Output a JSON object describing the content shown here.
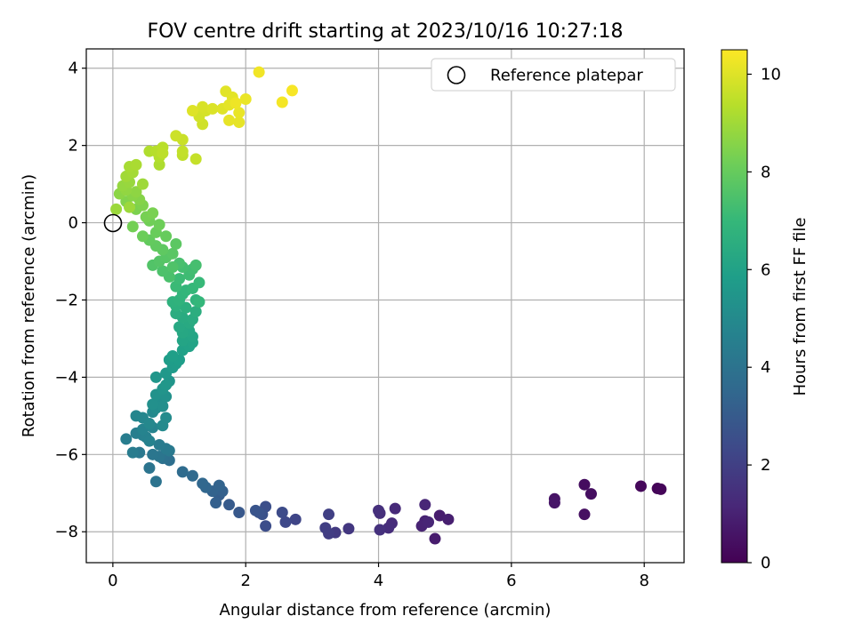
{
  "chart_data": {
    "type": "scatter",
    "title": "FOV centre drift starting at 2023/10/16 10:27:18",
    "xlabel": "Angular distance from reference (arcmin)",
    "ylabel": "Rotation from reference (arcmin)",
    "xlim": [
      -0.4,
      8.6
    ],
    "ylim": [
      -8.8,
      4.5
    ],
    "xticks": [
      "0",
      "2",
      "4",
      "6",
      "8"
    ],
    "yticks": [
      "−8",
      "−6",
      "−4",
      "−2",
      "0",
      "2",
      "4"
    ],
    "grid": true,
    "legend": {
      "position": "top-right",
      "entries": [
        "Reference platepar"
      ]
    },
    "reference_point": {
      "x": 0,
      "y": 0
    },
    "colorbar": {
      "label": "Hours from first FF file",
      "range": [
        0,
        10.5
      ],
      "ticks": [
        "0",
        "2",
        "4",
        "6",
        "8",
        "10"
      ],
      "colormap": "viridis"
    },
    "colors": {
      "viridis": [
        "#440154",
        "#482878",
        "#3e4989",
        "#31688e",
        "#26828e",
        "#1f9e89",
        "#35b779",
        "#6ece58",
        "#b5de2b",
        "#fde725"
      ]
    },
    "series": [
      {
        "points": [
          [
            8.2,
            -6.88,
            0.1
          ],
          [
            8.25,
            -6.9,
            0.15
          ],
          [
            7.95,
            -6.82,
            0.2
          ],
          [
            7.1,
            -6.78,
            0.35
          ],
          [
            7.2,
            -7.02,
            0.4
          ],
          [
            7.1,
            -7.55,
            0.45
          ],
          [
            6.65,
            -7.15,
            0.55
          ],
          [
            6.65,
            -7.25,
            0.6
          ],
          [
            4.85,
            -8.18,
            0.8
          ],
          [
            4.92,
            -7.58,
            0.85
          ],
          [
            5.05,
            -7.68,
            0.9
          ],
          [
            4.7,
            -7.72,
            1.0
          ],
          [
            4.65,
            -7.85,
            1.05
          ],
          [
            4.75,
            -7.75,
            1.1
          ],
          [
            4.7,
            -7.3,
            1.15
          ],
          [
            4.25,
            -7.4,
            1.25
          ],
          [
            4.2,
            -7.78,
            1.3
          ],
          [
            4.15,
            -7.9,
            1.35
          ],
          [
            4.02,
            -7.52,
            1.4
          ],
          [
            4.0,
            -7.45,
            1.45
          ],
          [
            4.02,
            -7.95,
            1.5
          ],
          [
            3.55,
            -7.92,
            1.7
          ],
          [
            3.35,
            -8.02,
            1.8
          ],
          [
            3.25,
            -8.05,
            1.9
          ],
          [
            3.2,
            -7.9,
            1.95
          ],
          [
            3.25,
            -7.55,
            2.0
          ],
          [
            2.75,
            -7.68,
            2.2
          ],
          [
            2.6,
            -7.75,
            2.3
          ],
          [
            2.55,
            -7.5,
            2.4
          ],
          [
            2.3,
            -7.85,
            2.5
          ],
          [
            2.3,
            -7.35,
            2.55
          ],
          [
            2.25,
            -7.55,
            2.65
          ],
          [
            2.2,
            -7.5,
            2.7
          ],
          [
            2.15,
            -7.45,
            2.75
          ],
          [
            1.9,
            -7.5,
            2.9
          ],
          [
            1.75,
            -7.3,
            3.0
          ],
          [
            1.6,
            -7.05,
            3.1
          ],
          [
            1.55,
            -7.25,
            3.2
          ],
          [
            1.65,
            -6.95,
            3.25
          ],
          [
            1.5,
            -6.95,
            3.3
          ],
          [
            1.6,
            -6.8,
            3.35
          ],
          [
            1.4,
            -6.85,
            3.45
          ],
          [
            1.35,
            -6.75,
            3.5
          ],
          [
            1.2,
            -6.55,
            3.6
          ],
          [
            1.05,
            -6.45,
            3.7
          ],
          [
            0.85,
            -6.15,
            3.8
          ],
          [
            0.8,
            -6.05,
            3.85
          ],
          [
            0.75,
            -6.1,
            3.9
          ],
          [
            0.65,
            -6.7,
            4.0
          ],
          [
            0.55,
            -6.35,
            4.05
          ],
          [
            0.7,
            -6.05,
            4.1
          ],
          [
            0.6,
            -6.0,
            4.15
          ],
          [
            0.4,
            -5.95,
            4.2
          ],
          [
            0.85,
            -5.9,
            4.25
          ],
          [
            0.8,
            -5.85,
            4.3
          ],
          [
            0.7,
            -5.75,
            4.35
          ],
          [
            0.3,
            -5.95,
            4.4
          ],
          [
            0.2,
            -5.6,
            4.45
          ],
          [
            0.35,
            -5.45,
            4.5
          ],
          [
            0.45,
            -5.5,
            4.55
          ],
          [
            0.5,
            -5.55,
            4.6
          ],
          [
            0.55,
            -5.65,
            4.65
          ],
          [
            0.45,
            -5.35,
            4.7
          ],
          [
            0.6,
            -5.3,
            4.75
          ],
          [
            0.35,
            -5.0,
            4.8
          ],
          [
            0.45,
            -5.05,
            4.85
          ],
          [
            0.55,
            -5.2,
            4.9
          ],
          [
            0.6,
            -4.9,
            4.95
          ],
          [
            0.75,
            -5.25,
            5.0
          ],
          [
            0.8,
            -5.05,
            5.05
          ],
          [
            0.65,
            -4.8,
            5.1
          ],
          [
            0.7,
            -4.65,
            5.15
          ],
          [
            0.75,
            -4.75,
            5.2
          ],
          [
            0.6,
            -4.7,
            5.25
          ],
          [
            0.8,
            -4.5,
            5.3
          ],
          [
            0.65,
            -4.45,
            5.35
          ],
          [
            0.75,
            -4.3,
            5.4
          ],
          [
            0.85,
            -4.1,
            5.45
          ],
          [
            0.65,
            -4.0,
            5.5
          ],
          [
            0.8,
            -4.2,
            5.55
          ],
          [
            0.8,
            -3.9,
            5.6
          ],
          [
            0.9,
            -3.75,
            5.7
          ],
          [
            0.95,
            -3.65,
            5.75
          ],
          [
            0.85,
            -3.55,
            5.8
          ],
          [
            1.0,
            -3.55,
            5.85
          ],
          [
            0.9,
            -3.45,
            5.9
          ],
          [
            1.05,
            -3.3,
            5.95
          ],
          [
            1.15,
            -3.2,
            6.0
          ],
          [
            1.2,
            -3.1,
            6.05
          ],
          [
            1.05,
            -3.05,
            6.1
          ],
          [
            1.2,
            -2.95,
            6.15
          ],
          [
            1.15,
            -2.8,
            6.2
          ],
          [
            1.05,
            -2.85,
            6.25
          ],
          [
            1.0,
            -2.7,
            6.3
          ],
          [
            1.15,
            -2.6,
            6.35
          ],
          [
            1.05,
            -2.45,
            6.4
          ],
          [
            1.2,
            -2.5,
            6.45
          ],
          [
            0.95,
            -2.35,
            6.5
          ],
          [
            1.25,
            -2.3,
            6.55
          ],
          [
            1.1,
            -2.2,
            6.6
          ],
          [
            0.95,
            -2.15,
            6.65
          ],
          [
            0.9,
            -2.05,
            6.7
          ],
          [
            1.0,
            -2.0,
            6.75
          ],
          [
            1.25,
            -2.0,
            6.8
          ],
          [
            1.05,
            -1.85,
            6.85
          ],
          [
            1.1,
            -1.75,
            6.9
          ],
          [
            1.3,
            -2.05,
            6.95
          ],
          [
            1.2,
            -1.7,
            7.0
          ],
          [
            1.3,
            -1.55,
            7.05
          ],
          [
            0.95,
            -1.65,
            7.1
          ],
          [
            1.0,
            -1.45,
            7.15
          ],
          [
            1.15,
            -1.35,
            7.2
          ],
          [
            1.2,
            -1.2,
            7.25
          ],
          [
            1.05,
            -1.15,
            7.3
          ],
          [
            1.25,
            -1.1,
            7.35
          ],
          [
            1.0,
            -1.05,
            7.4
          ],
          [
            0.85,
            -1.4,
            7.45
          ],
          [
            0.75,
            -1.25,
            7.5
          ],
          [
            0.9,
            -1.15,
            7.55
          ],
          [
            0.6,
            -1.1,
            7.6
          ],
          [
            0.7,
            -1.0,
            7.65
          ],
          [
            0.8,
            -0.9,
            7.7
          ],
          [
            0.9,
            -0.8,
            7.75
          ],
          [
            0.95,
            -0.55,
            7.8
          ],
          [
            0.75,
            -0.7,
            7.85
          ],
          [
            0.65,
            -0.6,
            7.9
          ],
          [
            0.55,
            -0.45,
            7.95
          ],
          [
            0.8,
            -0.35,
            8.0
          ],
          [
            0.65,
            -0.25,
            8.05
          ],
          [
            0.45,
            -0.35,
            8.1
          ],
          [
            0.7,
            -0.05,
            8.15
          ],
          [
            0.55,
            0.05,
            8.2
          ],
          [
            0.3,
            -0.1,
            8.25
          ],
          [
            0.5,
            0.15,
            8.3
          ],
          [
            0.6,
            0.25,
            8.35
          ],
          [
            0.35,
            0.35,
            8.4
          ],
          [
            0.45,
            0.45,
            8.45
          ],
          [
            0.2,
            0.55,
            8.5
          ],
          [
            0.4,
            0.6,
            8.55
          ],
          [
            0.3,
            0.7,
            8.6
          ],
          [
            0.1,
            0.75,
            8.65
          ],
          [
            0.35,
            0.8,
            8.7
          ],
          [
            0.2,
            0.85,
            8.75
          ],
          [
            0.15,
            0.95,
            8.8
          ],
          [
            0.25,
            1.05,
            8.85
          ],
          [
            0.05,
            0.35,
            8.9
          ],
          [
            0.25,
            0.4,
            8.92
          ],
          [
            0.45,
            1.0,
            8.95
          ],
          [
            0.2,
            1.2,
            9.0
          ],
          [
            0.3,
            1.3,
            9.05
          ],
          [
            0.25,
            1.45,
            9.1
          ],
          [
            0.35,
            1.5,
            9.15
          ],
          [
            0.7,
            1.5,
            9.2
          ],
          [
            0.55,
            1.85,
            9.25
          ],
          [
            0.7,
            1.7,
            9.3
          ],
          [
            0.65,
            1.85,
            9.35
          ],
          [
            0.75,
            1.95,
            9.4
          ],
          [
            0.75,
            1.8,
            9.45
          ],
          [
            1.05,
            1.75,
            9.5
          ],
          [
            1.05,
            1.85,
            9.55
          ],
          [
            1.25,
            1.65,
            9.6
          ],
          [
            1.05,
            2.15,
            9.65
          ],
          [
            0.95,
            2.25,
            9.7
          ],
          [
            1.35,
            2.55,
            9.75
          ],
          [
            1.3,
            2.75,
            9.8
          ],
          [
            1.4,
            2.9,
            9.85
          ],
          [
            1.35,
            3.0,
            9.9
          ],
          [
            1.5,
            2.95,
            9.95
          ],
          [
            1.2,
            2.9,
            10.0
          ],
          [
            1.65,
            2.95,
            10.02
          ],
          [
            1.7,
            3.4,
            10.05
          ],
          [
            1.8,
            3.25,
            10.08
          ],
          [
            1.75,
            3.05,
            10.1
          ],
          [
            1.9,
            2.6,
            10.12
          ],
          [
            1.75,
            2.65,
            10.15
          ],
          [
            1.9,
            2.85,
            10.18
          ],
          [
            2.0,
            3.2,
            10.2
          ],
          [
            1.85,
            3.1,
            10.25
          ],
          [
            2.2,
            3.9,
            10.3
          ],
          [
            2.55,
            3.12,
            10.35
          ],
          [
            2.7,
            3.42,
            10.4
          ]
        ]
      }
    ]
  }
}
